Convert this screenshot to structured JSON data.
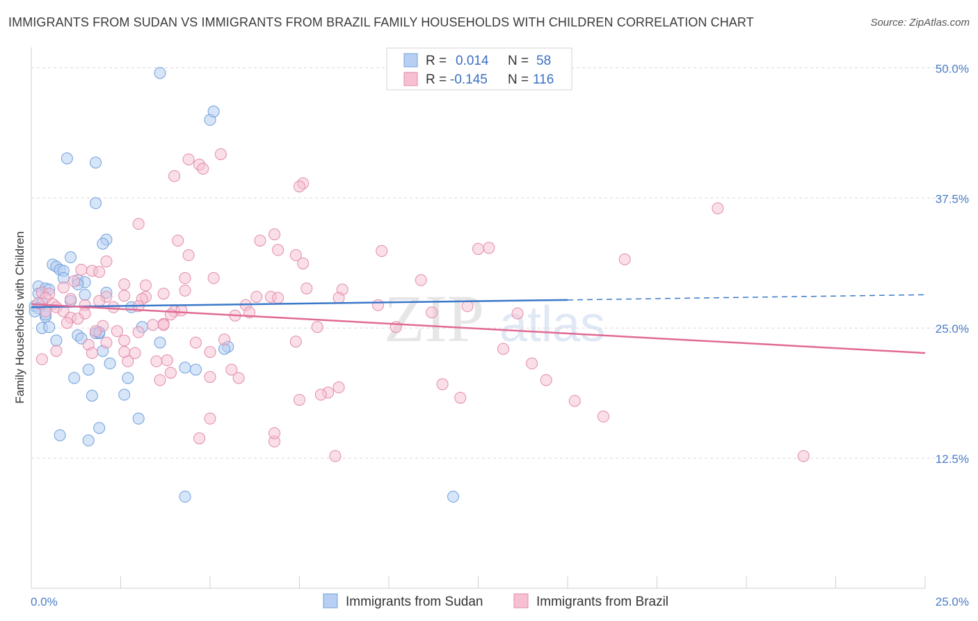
{
  "header": {
    "title": "IMMIGRANTS FROM SUDAN VS IMMIGRANTS FROM BRAZIL FAMILY HOUSEHOLDS WITH CHILDREN CORRELATION CHART",
    "source": "Source: ZipAtlas.com"
  },
  "legend": {
    "r_label": "R =",
    "n_label": "N =",
    "sudan": {
      "r": "0.014",
      "n": "58"
    },
    "brazil": {
      "r": "-0.145",
      "n": "116"
    }
  },
  "watermark": {
    "zip": "ZIP",
    "atlas": "atlas"
  },
  "colors": {
    "sudan_fill": "#b7cff2",
    "sudan_stroke": "#6f9fdc",
    "sudan_line": "#3a78c9",
    "brazil_fill": "#f6bfd2",
    "brazil_stroke": "#e38aab",
    "brazil_line": "#e06a94",
    "tick_text": "#4a7cc7",
    "grid": "#d8d8d8"
  },
  "chart_data": {
    "type": "scatter",
    "title": "IMMIGRANTS FROM SUDAN VS IMMIGRANTS FROM BRAZIL FAMILY HOUSEHOLDS WITH CHILDREN CORRELATION CHART",
    "xlabel": "",
    "ylabel": "Family Households with Children",
    "xlim": [
      0,
      25
    ],
    "ylim": [
      0,
      52.5
    ],
    "x_tick_labels": [
      "0.0%",
      "25.0%"
    ],
    "y_ticks": [
      12.5,
      25.0,
      37.5,
      50.0
    ],
    "y_tick_labels": [
      "12.5%",
      "25.0%",
      "37.5%",
      "50.0%"
    ],
    "grid": true,
    "legend_position": "top-center",
    "series": [
      {
        "name": "Immigrants from Sudan",
        "color": "#b7cff2",
        "trend": {
          "x": [
            0,
            15
          ],
          "y": [
            27.0,
            27.7
          ],
          "dashed_extension_to": [
            25,
            28.2
          ]
        },
        "points": [
          [
            3.6,
            49.5
          ],
          [
            5.0,
            45.0
          ],
          [
            5.1,
            45.8
          ],
          [
            1.0,
            41.3
          ],
          [
            1.8,
            40.9
          ],
          [
            1.8,
            37.0
          ],
          [
            2.1,
            33.5
          ],
          [
            2.0,
            33.1
          ],
          [
            1.1,
            31.8
          ],
          [
            0.6,
            31.1
          ],
          [
            0.7,
            30.9
          ],
          [
            0.8,
            30.6
          ],
          [
            0.9,
            30.5
          ],
          [
            0.9,
            29.8
          ],
          [
            1.3,
            29.6
          ],
          [
            1.5,
            29.4
          ],
          [
            1.3,
            29.2
          ],
          [
            0.2,
            29.0
          ],
          [
            0.4,
            28.8
          ],
          [
            0.5,
            28.7
          ],
          [
            0.2,
            28.3
          ],
          [
            1.5,
            28.2
          ],
          [
            2.1,
            28.4
          ],
          [
            1.1,
            27.6
          ],
          [
            0.3,
            27.4
          ],
          [
            0.1,
            27.1
          ],
          [
            0.2,
            26.9
          ],
          [
            2.8,
            27.0
          ],
          [
            0.1,
            26.6
          ],
          [
            0.4,
            26.1
          ],
          [
            0.4,
            26.3
          ],
          [
            0.3,
            25.0
          ],
          [
            0.5,
            25.1
          ],
          [
            3.1,
            25.1
          ],
          [
            1.8,
            24.5
          ],
          [
            1.9,
            24.5
          ],
          [
            1.3,
            24.3
          ],
          [
            1.4,
            24.0
          ],
          [
            0.7,
            23.8
          ],
          [
            3.6,
            23.6
          ],
          [
            5.5,
            23.2
          ],
          [
            2.0,
            22.8
          ],
          [
            2.2,
            21.6
          ],
          [
            4.3,
            21.2
          ],
          [
            4.6,
            21.0
          ],
          [
            1.6,
            21.0
          ],
          [
            1.2,
            20.2
          ],
          [
            2.7,
            20.2
          ],
          [
            1.7,
            18.5
          ],
          [
            2.6,
            18.6
          ],
          [
            3.0,
            16.3
          ],
          [
            1.9,
            15.4
          ],
          [
            0.8,
            14.7
          ],
          [
            1.6,
            14.2
          ],
          [
            4.3,
            8.8
          ],
          [
            11.8,
            8.8
          ],
          [
            1.9,
            24.6
          ],
          [
            5.4,
            23.0
          ]
        ]
      },
      {
        "name": "Immigrants from Brazil",
        "color": "#f6bfd2",
        "trend": {
          "x": [
            0,
            25
          ],
          "y": [
            27.3,
            22.6
          ]
        },
        "points": [
          [
            5.3,
            41.7
          ],
          [
            4.4,
            41.2
          ],
          [
            4.7,
            40.7
          ],
          [
            4.8,
            40.3
          ],
          [
            4.0,
            39.6
          ],
          [
            7.6,
            38.9
          ],
          [
            7.5,
            38.6
          ],
          [
            19.2,
            36.5
          ],
          [
            3.0,
            35.0
          ],
          [
            6.8,
            34.0
          ],
          [
            6.4,
            33.4
          ],
          [
            4.1,
            33.4
          ],
          [
            12.5,
            32.6
          ],
          [
            12.8,
            32.7
          ],
          [
            9.8,
            32.4
          ],
          [
            6.9,
            32.5
          ],
          [
            4.4,
            32.0
          ],
          [
            7.4,
            32.0
          ],
          [
            16.6,
            31.6
          ],
          [
            7.6,
            31.2
          ],
          [
            2.1,
            31.4
          ],
          [
            1.4,
            30.6
          ],
          [
            1.7,
            30.5
          ],
          [
            1.9,
            30.4
          ],
          [
            5.1,
            29.8
          ],
          [
            4.3,
            29.8
          ],
          [
            1.2,
            29.5
          ],
          [
            10.9,
            29.6
          ],
          [
            2.6,
            29.2
          ],
          [
            3.2,
            29.1
          ],
          [
            0.9,
            28.9
          ],
          [
            7.7,
            28.8
          ],
          [
            8.7,
            28.7
          ],
          [
            4.3,
            28.6
          ],
          [
            0.3,
            28.4
          ],
          [
            2.6,
            28.1
          ],
          [
            2.1,
            28.0
          ],
          [
            3.2,
            28.0
          ],
          [
            3.7,
            28.3
          ],
          [
            0.5,
            28.3
          ],
          [
            0.4,
            27.9
          ],
          [
            1.1,
            27.8
          ],
          [
            1.9,
            27.6
          ],
          [
            3.1,
            27.8
          ],
          [
            6.3,
            28.0
          ],
          [
            6.7,
            28.0
          ],
          [
            6.9,
            27.9
          ],
          [
            8.6,
            27.9
          ],
          [
            0.2,
            27.4
          ],
          [
            0.6,
            27.3
          ],
          [
            1.5,
            27.2
          ],
          [
            0.7,
            27.0
          ],
          [
            2.3,
            27.0
          ],
          [
            3.0,
            27.1
          ],
          [
            6.0,
            27.2
          ],
          [
            9.7,
            27.2
          ],
          [
            12.2,
            27.1
          ],
          [
            0.9,
            26.6
          ],
          [
            1.5,
            26.4
          ],
          [
            4.0,
            26.6
          ],
          [
            4.2,
            26.7
          ],
          [
            0.4,
            26.6
          ],
          [
            3.7,
            25.4
          ],
          [
            5.7,
            26.2
          ],
          [
            3.9,
            26.3
          ],
          [
            6.1,
            26.5
          ],
          [
            11.2,
            26.5
          ],
          [
            13.6,
            26.4
          ],
          [
            1.1,
            26.0
          ],
          [
            1.3,
            25.9
          ],
          [
            1.0,
            25.5
          ],
          [
            3.4,
            25.3
          ],
          [
            3.7,
            25.3
          ],
          [
            2.0,
            25.2
          ],
          [
            8.0,
            25.1
          ],
          [
            10.2,
            25.1
          ],
          [
            1.8,
            24.7
          ],
          [
            2.4,
            24.7
          ],
          [
            3.0,
            24.6
          ],
          [
            5.4,
            23.9
          ],
          [
            2.6,
            23.8
          ],
          [
            4.6,
            23.6
          ],
          [
            1.6,
            23.4
          ],
          [
            2.1,
            23.6
          ],
          [
            7.4,
            23.7
          ],
          [
            0.7,
            22.8
          ],
          [
            1.7,
            22.6
          ],
          [
            2.6,
            22.7
          ],
          [
            2.9,
            22.6
          ],
          [
            5.0,
            22.7
          ],
          [
            13.2,
            23.0
          ],
          [
            0.3,
            22.0
          ],
          [
            3.5,
            21.8
          ],
          [
            2.7,
            21.8
          ],
          [
            3.8,
            21.9
          ],
          [
            14.0,
            21.6
          ],
          [
            5.6,
            21.0
          ],
          [
            3.9,
            20.7
          ],
          [
            5.8,
            20.2
          ],
          [
            3.6,
            20.0
          ],
          [
            5.0,
            20.3
          ],
          [
            14.4,
            20.0
          ],
          [
            11.5,
            19.6
          ],
          [
            8.6,
            19.3
          ],
          [
            8.3,
            18.8
          ],
          [
            8.1,
            18.6
          ],
          [
            7.5,
            18.1
          ],
          [
            12.0,
            18.3
          ],
          [
            15.2,
            18.0
          ],
          [
            16.0,
            16.5
          ],
          [
            5.0,
            16.3
          ],
          [
            4.7,
            14.4
          ],
          [
            6.8,
            14.1
          ],
          [
            6.8,
            14.9
          ],
          [
            8.5,
            12.7
          ],
          [
            21.6,
            12.7
          ]
        ]
      }
    ]
  },
  "bottom_legend": {
    "sudan_label": "Immigrants from Sudan",
    "brazil_label": "Immigrants from Brazil"
  }
}
